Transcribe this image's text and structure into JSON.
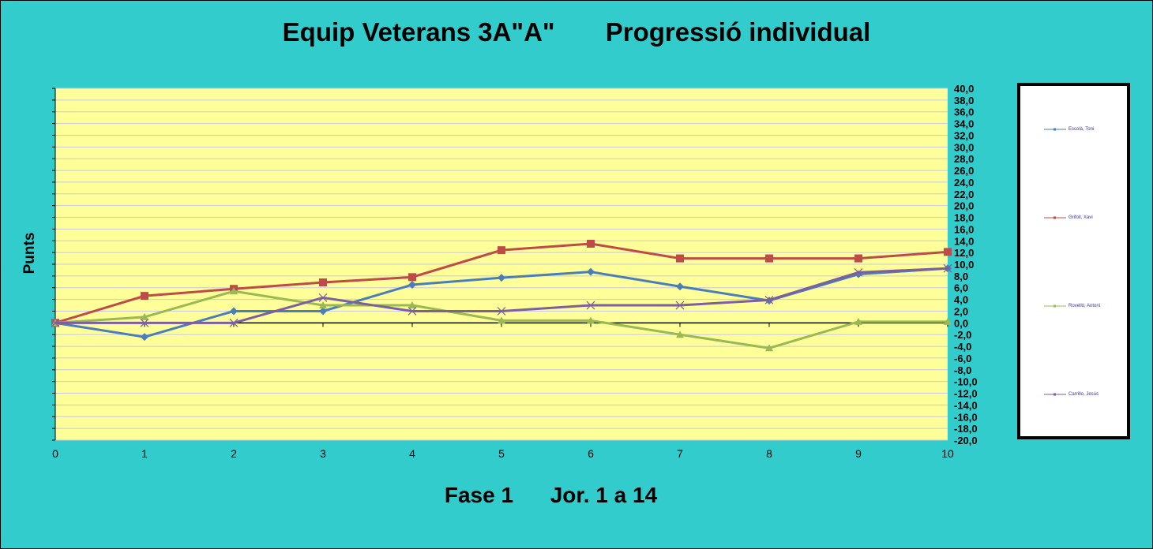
{
  "title": "Equip Veterans 3A\"A\"       Progressió individual",
  "chart_data": {
    "type": "line",
    "title": "Equip Veterans 3A\"A\"       Progressió individual",
    "xlabel": "Fase 1      Jor. 1 a 14",
    "ylabel": "Punts",
    "x": [
      0,
      1,
      2,
      3,
      4,
      5,
      6,
      7,
      8,
      9,
      10
    ],
    "xlim": [
      0,
      10
    ],
    "ylim": [
      -20,
      40
    ],
    "ytick_step": 2,
    "yaxis_side": "right",
    "plot_background": "#FFFF99",
    "grid": true,
    "legend_placement": "right",
    "series": [
      {
        "name": "Escolà, Toni",
        "color": "#4A7EBB",
        "marker": "diamond",
        "values": [
          0,
          -2.4,
          2.0,
          2.0,
          6.5,
          7.7,
          8.7,
          6.2,
          3.8,
          8.3,
          9.3
        ]
      },
      {
        "name": "Grifoll, Xavi",
        "color": "#BE4B48",
        "marker": "square",
        "values": [
          0,
          4.6,
          5.8,
          6.9,
          7.8,
          12.4,
          13.5,
          11.0,
          11.0,
          11.0,
          12.1
        ]
      },
      {
        "name": "Rovellò, Antoni",
        "color": "#98B954",
        "marker": "triangle",
        "values": [
          0,
          1.0,
          5.4,
          3.0,
          3.0,
          0.4,
          0.4,
          -2.0,
          -4.3,
          0.2,
          0.2
        ]
      },
      {
        "name": "Carrillo, Jesús",
        "color": "#7D5FA0",
        "marker": "x",
        "values": [
          0,
          0,
          0,
          4.3,
          2.0,
          2.0,
          3.0,
          3.0,
          3.9,
          8.6,
          9.3
        ]
      }
    ]
  }
}
